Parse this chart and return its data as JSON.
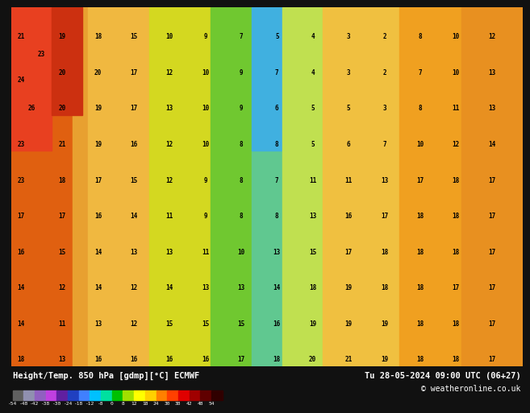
{
  "title_left": "Height/Temp. 850 hPa [gdmp][°C] ECMWF",
  "title_right": "Tu 28-05-2024 09:00 UTC (06+27)",
  "copyright": "© weatheronline.co.uk",
  "colorbar_values": [
    -54,
    -48,
    -42,
    -38,
    -30,
    -24,
    -18,
    -12,
    -8,
    0,
    8,
    12,
    18,
    24,
    30,
    38,
    42,
    48,
    54
  ],
  "colorbar_tick_labels": [
    "-54",
    "-48",
    "-42",
    "-38",
    "-30",
    "-24",
    "-18",
    "-12",
    "-8",
    "0",
    "8",
    "12",
    "18",
    "24",
    "30",
    "38",
    "42",
    "48",
    "54"
  ],
  "colorbar_colors": [
    "#808080",
    "#a0a0c0",
    "#9060c0",
    "#c040e0",
    "#6020a0",
    "#2040c0",
    "#4080ff",
    "#00c0ff",
    "#00e0a0",
    "#00c000",
    "#a0e000",
    "#ffff00",
    "#ffd000",
    "#ff8000",
    "#ff4000",
    "#e00000",
    "#a00000",
    "#600000",
    "#300000"
  ],
  "bg_color": "#111111",
  "bottom_bar_height": 0.09,
  "map_bg": "#f0a020"
}
